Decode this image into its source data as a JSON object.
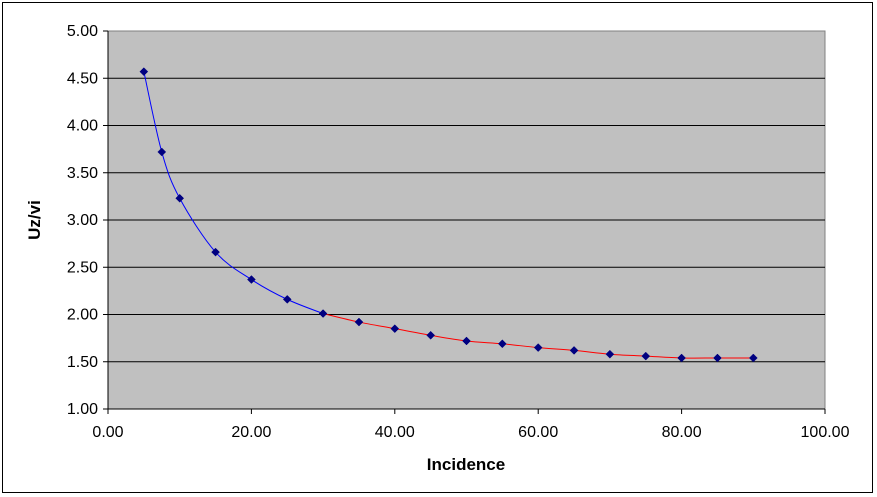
{
  "chart_data": {
    "type": "scatter",
    "title": "",
    "xlabel": "Incidence",
    "ylabel": "Uz/vi",
    "xlim": [
      0,
      100
    ],
    "ylim": [
      1,
      5
    ],
    "x_ticks": [
      "0.00",
      "20.00",
      "40.00",
      "60.00",
      "80.00",
      "100.00"
    ],
    "y_ticks": [
      "1.00",
      "1.50",
      "2.00",
      "2.50",
      "3.00",
      "3.50",
      "4.00",
      "4.50",
      "5.00"
    ],
    "grid": "horizontal",
    "legend": "none",
    "plot_background": "#C0C0C0",
    "marker_color": "#000080",
    "series": [
      {
        "color": "#0000FF",
        "points": [
          [
            5,
            4.57
          ],
          [
            7.5,
            3.72
          ],
          [
            10,
            3.23
          ],
          [
            15,
            2.66
          ],
          [
            20,
            2.37
          ],
          [
            25,
            2.16
          ],
          [
            30,
            2.01
          ]
        ]
      },
      {
        "color": "#FF0000",
        "points": [
          [
            30,
            2.01
          ],
          [
            35,
            1.92
          ],
          [
            40,
            1.85
          ],
          [
            45,
            1.78
          ],
          [
            50,
            1.72
          ],
          [
            55,
            1.69
          ],
          [
            60,
            1.65
          ],
          [
            65,
            1.62
          ],
          [
            70,
            1.58
          ],
          [
            75,
            1.56
          ],
          [
            80,
            1.54
          ],
          [
            85,
            1.54
          ],
          [
            90,
            1.54
          ]
        ]
      }
    ]
  }
}
